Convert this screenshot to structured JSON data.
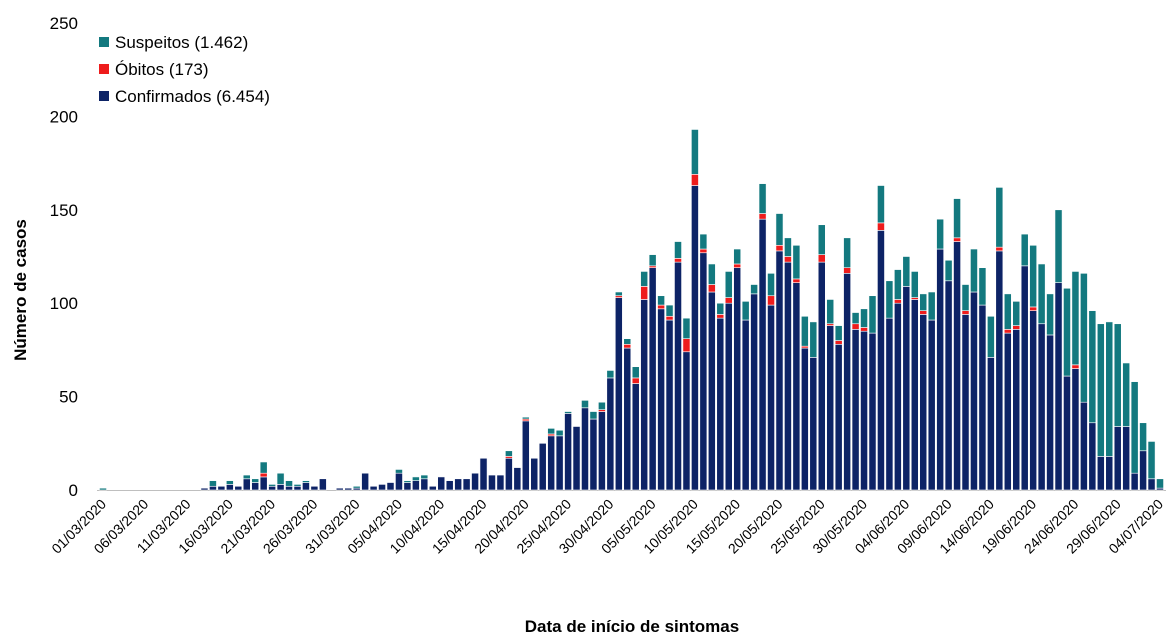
{
  "chart_data": {
    "type": "stacked_bar",
    "x_label": "Data de início de sintomas",
    "y_label": "Número de casos",
    "categories": [
      "01/03/2020",
      null,
      null,
      null,
      null,
      "06/03/2020",
      null,
      null,
      null,
      null,
      "11/03/2020",
      null,
      null,
      null,
      null,
      "16/03/2020",
      null,
      null,
      null,
      null,
      "21/03/2020",
      null,
      null,
      null,
      null,
      "26/03/2020",
      null,
      null,
      null,
      null,
      "31/03/2020",
      null,
      null,
      null,
      null,
      "05/04/2020",
      null,
      null,
      null,
      null,
      "10/04/2020",
      null,
      null,
      null,
      null,
      "15/04/2020",
      null,
      null,
      null,
      null,
      "20/04/2020",
      null,
      null,
      null,
      null,
      "25/04/2020",
      null,
      null,
      null,
      null,
      "30/04/2020",
      null,
      null,
      null,
      null,
      "05/05/2020",
      null,
      null,
      null,
      null,
      "10/05/2020",
      null,
      null,
      null,
      null,
      "15/05/2020",
      null,
      null,
      null,
      null,
      "20/05/2020",
      null,
      null,
      null,
      null,
      "25/05/2020",
      null,
      null,
      null,
      null,
      "30/05/2020",
      null,
      null,
      null,
      null,
      "04/06/2020",
      null,
      null,
      null,
      null,
      "09/06/2020",
      null,
      null,
      null,
      null,
      "14/06/2020",
      null,
      null,
      null,
      null,
      "19/06/2020",
      null,
      null,
      null,
      null,
      "24/06/2020",
      null,
      null,
      null,
      null,
      "29/06/2020",
      null,
      null,
      null,
      null,
      "04/07/2020"
    ],
    "series": [
      {
        "name": "Suspeitos (1.462)",
        "color": "#13797f",
        "values": [
          1,
          0,
          0,
          0,
          0,
          0,
          0,
          0,
          0,
          0,
          0,
          0,
          0,
          3,
          0,
          2,
          0,
          2,
          2,
          6,
          1,
          6,
          3,
          1,
          1,
          0,
          0,
          0,
          0,
          0,
          1,
          0,
          0,
          0,
          0,
          2,
          1,
          2,
          2,
          0,
          0,
          0,
          0,
          0,
          0,
          0,
          0,
          0,
          3,
          0,
          1,
          0,
          0,
          3,
          3,
          1,
          0,
          4,
          4,
          4,
          4,
          2,
          3,
          6,
          8,
          6,
          5,
          6,
          9,
          11,
          24,
          8,
          11,
          6,
          14,
          8,
          10,
          5,
          16,
          12,
          17,
          10,
          18,
          16,
          19,
          16,
          13,
          8,
          16,
          6,
          10,
          20,
          20,
          20,
          16,
          16,
          14,
          9,
          15,
          16,
          11,
          21,
          14,
          23,
          20,
          22,
          32,
          19,
          13,
          17,
          33,
          32,
          22,
          39,
          47,
          50,
          69,
          60,
          71,
          72,
          55,
          34,
          49,
          15,
          20,
          5
        ]
      },
      {
        "name": "Óbitos (173)",
        "color": "#ee1c1c",
        "values": [
          0,
          0,
          0,
          0,
          0,
          0,
          0,
          0,
          0,
          0,
          0,
          0,
          0,
          0,
          0,
          0,
          0,
          0,
          0,
          2,
          0,
          0,
          0,
          0,
          0,
          0,
          0,
          0,
          0,
          0,
          0,
          0,
          0,
          0,
          0,
          0,
          0,
          0,
          0,
          0,
          0,
          0,
          0,
          0,
          0,
          0,
          0,
          0,
          1,
          0,
          1,
          0,
          0,
          1,
          0,
          0,
          0,
          0,
          0,
          1,
          0,
          1,
          2,
          3,
          7,
          1,
          2,
          2,
          2,
          7,
          6,
          2,
          4,
          2,
          3,
          2,
          0,
          0,
          3,
          5,
          3,
          3,
          2,
          1,
          0,
          4,
          1,
          2,
          3,
          3,
          2,
          0,
          4,
          0,
          2,
          0,
          1,
          2,
          0,
          0,
          0,
          2,
          2,
          0,
          0,
          0,
          2,
          2,
          2,
          0,
          2,
          0,
          0,
          0,
          0,
          2,
          0,
          0,
          0,
          0,
          0,
          0,
          0,
          0,
          0,
          0
        ]
      },
      {
        "name": "Confirmados (6.454)",
        "color": "#0d2366",
        "values": [
          0,
          0,
          0,
          0,
          0,
          0,
          0,
          0,
          0,
          0,
          0,
          0,
          1,
          2,
          2,
          3,
          2,
          6,
          4,
          7,
          2,
          3,
          2,
          2,
          4,
          2,
          6,
          0,
          1,
          1,
          1,
          9,
          2,
          3,
          4,
          9,
          4,
          5,
          6,
          2,
          7,
          5,
          6,
          6,
          9,
          17,
          8,
          8,
          17,
          12,
          37,
          17,
          25,
          29,
          29,
          41,
          34,
          44,
          38,
          42,
          60,
          103,
          76,
          57,
          102,
          119,
          97,
          91,
          122,
          74,
          163,
          127,
          106,
          92,
          100,
          119,
          91,
          105,
          145,
          99,
          128,
          122,
          111,
          76,
          71,
          122,
          88,
          78,
          116,
          86,
          85,
          84,
          139,
          92,
          100,
          109,
          102,
          94,
          91,
          129,
          112,
          133,
          94,
          106,
          99,
          71,
          128,
          84,
          86,
          120,
          96,
          89,
          83,
          111,
          61,
          65,
          47,
          36,
          18,
          18,
          34,
          34,
          9,
          21,
          6,
          1
        ]
      }
    ],
    "ylim": [
      0,
      250
    ],
    "yticks": [
      0,
      50,
      100,
      150,
      200,
      250
    ],
    "grid": false,
    "legend": "upper left"
  }
}
